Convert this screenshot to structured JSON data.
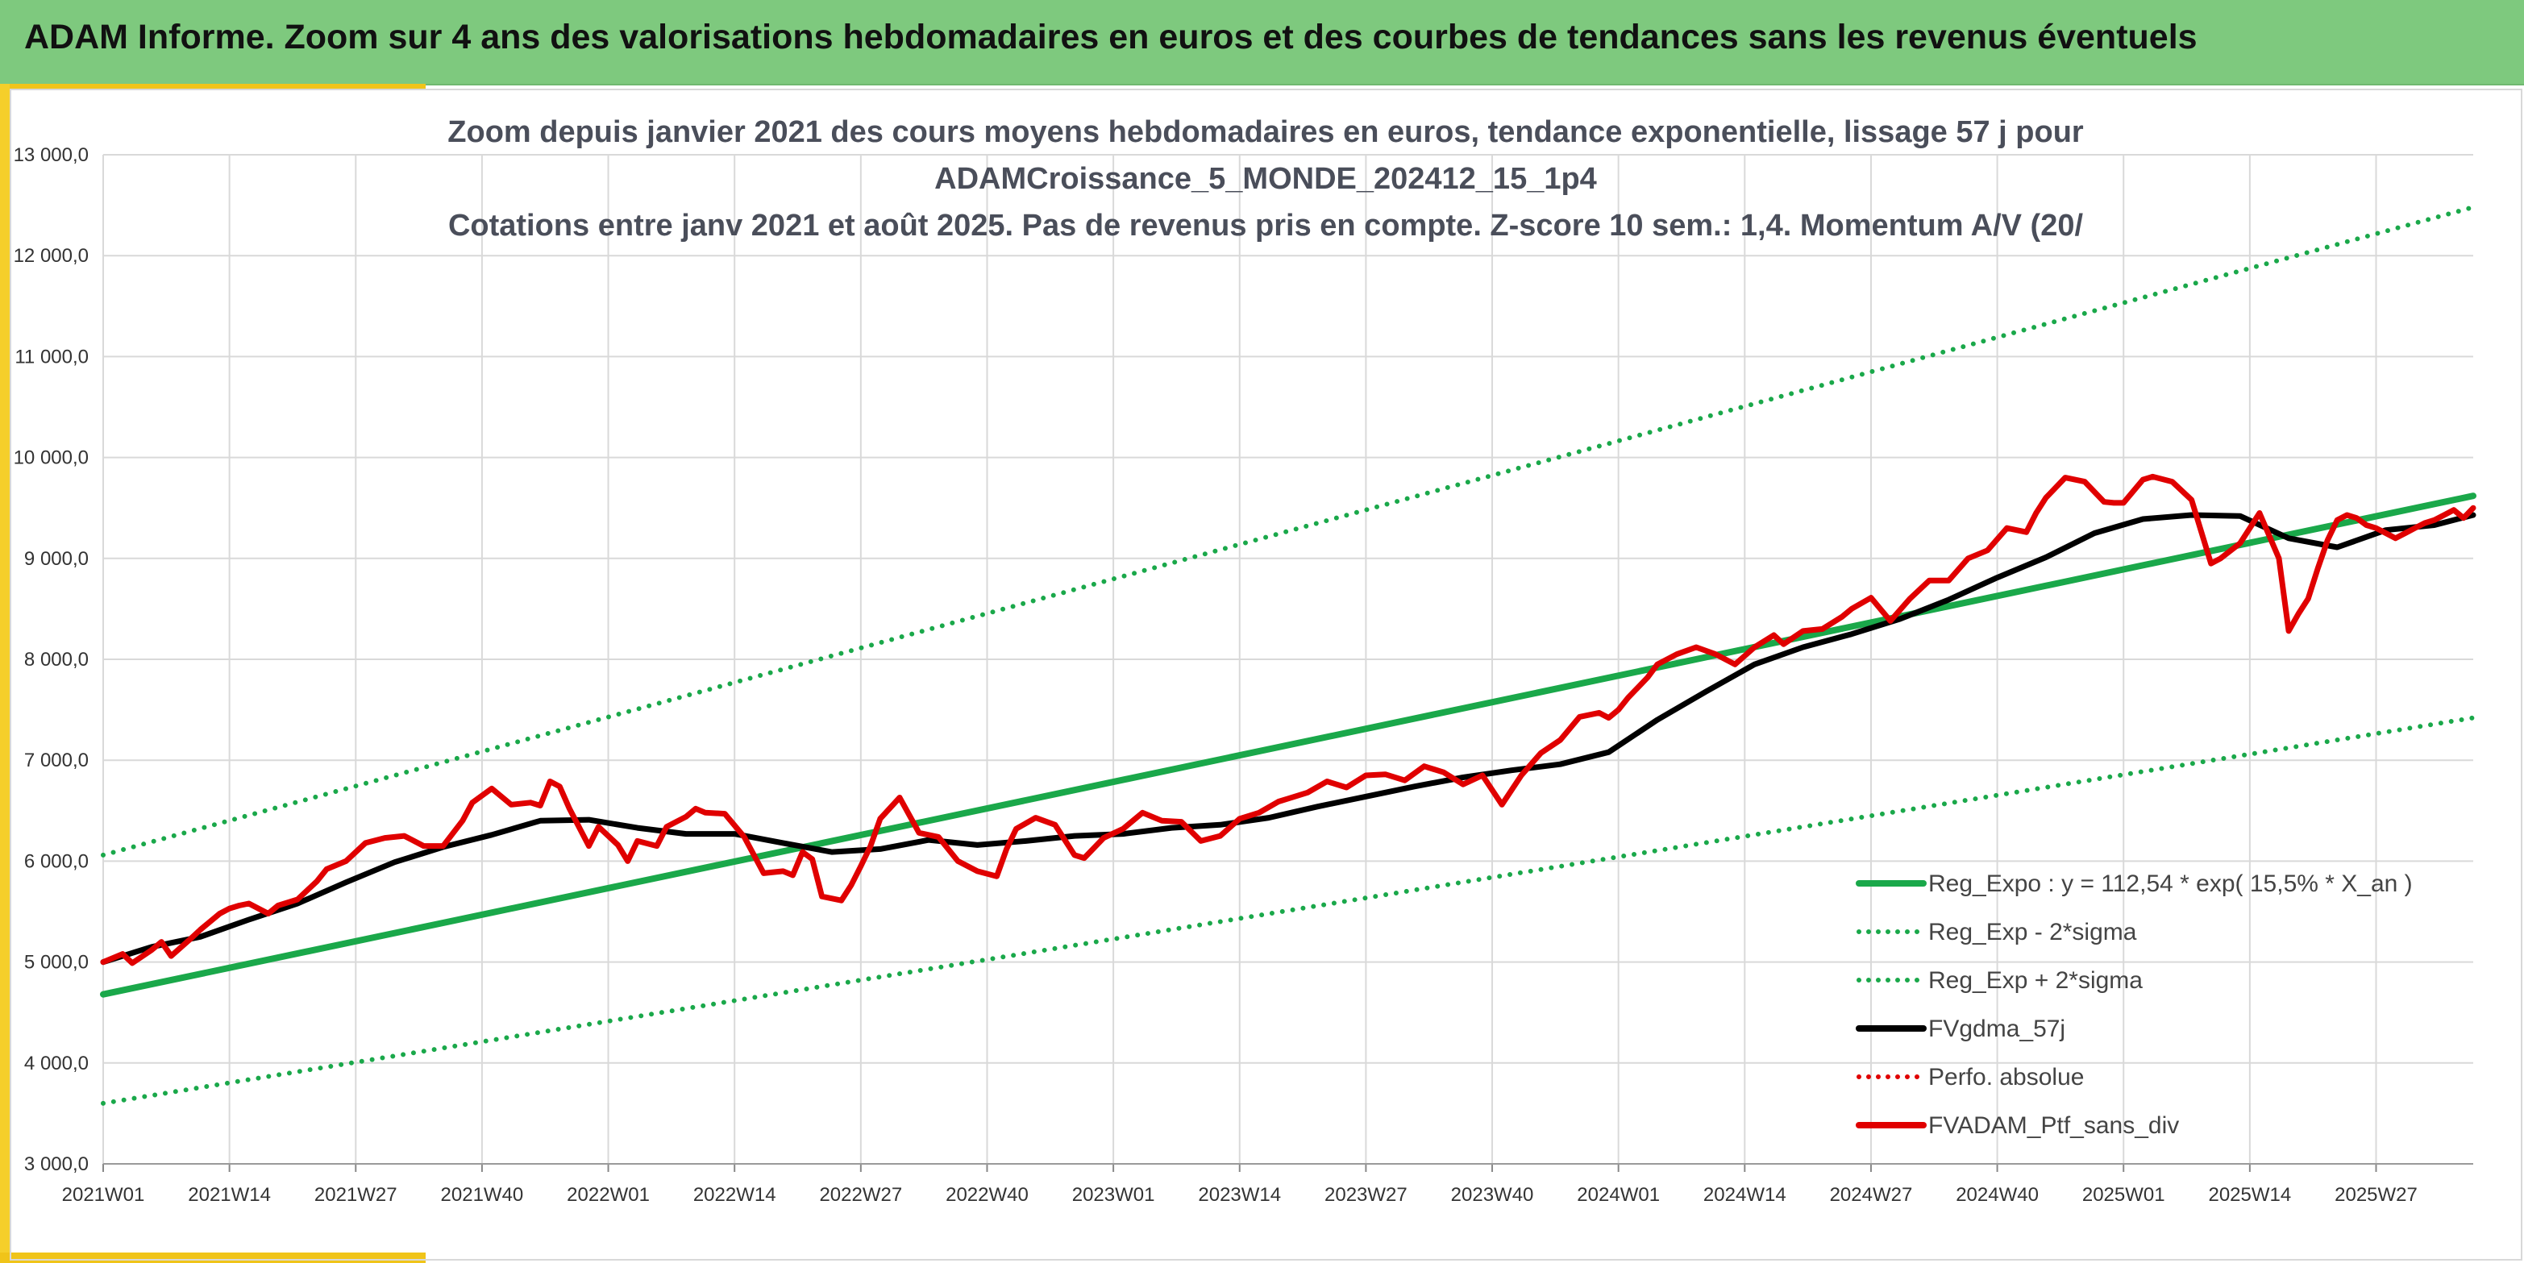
{
  "banner": {
    "title": "ADAM Informe. Zoom sur 4 ans des valorisations hebdomadaires en euros et des courbes de tendances sans les revenus éventuels",
    "color": "#7ec97e"
  },
  "chart_data": {
    "type": "line",
    "title_lines": [
      "Zoom depuis janvier 2021 des cours moyens hebdomadaires en euros, tendance exponentielle, lissage 57 j pour",
      "ADAMCroissance_5_MONDE_202412_15_1p4",
      "Cotations entre janv 2021 et août 2025. Pas de revenus pris en compte. Z-score 10 sem.: 1,4. Momentum A/V (20/"
    ],
    "ylim": [
      3000,
      13000
    ],
    "yticks": [
      "3 000,0",
      "4 000,0",
      "5 000,0",
      "6 000,0",
      "7 000,0",
      "8 000,0",
      "9 000,0",
      "10 000,0",
      "11 000,0",
      "12 000,0",
      "13 000,0"
    ],
    "ytick_values": [
      3000,
      4000,
      5000,
      6000,
      7000,
      8000,
      9000,
      10000,
      11000,
      12000,
      13000
    ],
    "xticks": [
      "2021W01",
      "2021W14",
      "2021W27",
      "2021W40",
      "2022W01",
      "2022W14",
      "2022W27",
      "2022W40",
      "2023W01",
      "2023W14",
      "2023W27",
      "2023W40",
      "2024W01",
      "2024W14",
      "2024W27",
      "2024W40",
      "2025W01",
      "2025W14",
      "2025W27"
    ],
    "week_range": [
      0,
      244
    ],
    "grid": true,
    "legend_position": "bottom-right",
    "series": [
      {
        "name": "Reg_Expo : y = 112,54 * exp( 15,5% *  X_an )",
        "color": "#1aa84a",
        "style": "solid",
        "x": [
          0,
          244
        ],
        "y": [
          4680,
          9620
        ]
      },
      {
        "name": "Reg_Exp - 2*sigma",
        "color": "#1aa84a",
        "style": "dotted",
        "x": [
          0,
          244
        ],
        "y": [
          3600,
          7420
        ]
      },
      {
        "name": "Reg_Exp + 2*sigma",
        "color": "#1aa84a",
        "style": "dotted",
        "x": [
          0,
          244
        ],
        "y": [
          6060,
          12480
        ]
      },
      {
        "name": "FVgdma_57j",
        "color": "#000000",
        "style": "solid",
        "x": [
          0,
          5,
          10,
          15,
          20,
          25,
          30,
          35,
          40,
          45,
          50,
          55,
          60,
          65,
          70,
          75,
          80,
          85,
          90,
          95,
          100,
          105,
          110,
          115,
          120,
          125,
          130,
          135,
          140,
          145,
          150,
          155,
          160,
          165,
          170,
          175,
          180,
          185,
          190,
          195,
          200,
          205,
          210,
          215,
          220,
          225,
          230,
          235,
          240,
          244
        ],
        "y": [
          5000,
          5150,
          5250,
          5420,
          5580,
          5790,
          5990,
          6140,
          6260,
          6400,
          6410,
          6330,
          6270,
          6270,
          6180,
          6090,
          6120,
          6210,
          6160,
          6200,
          6250,
          6270,
          6330,
          6360,
          6430,
          6540,
          6640,
          6740,
          6830,
          6900,
          6960,
          7080,
          7400,
          7680,
          7950,
          8120,
          8250,
          8400,
          8590,
          8810,
          9010,
          9250,
          9390,
          9430,
          9420,
          9200,
          9110,
          9280,
          9330,
          9430
        ]
      },
      {
        "name": "Perfo. absolue",
        "color": "#e00000",
        "style": "dotted",
        "x": [],
        "y": []
      },
      {
        "name": "FVADAM_Ptf_sans_div",
        "color": "#e00000",
        "style": "solid",
        "x": [
          0,
          2,
          3,
          5,
          6,
          7,
          9,
          10,
          12,
          13,
          14,
          15,
          17,
          18,
          20,
          22,
          23,
          25,
          27,
          29,
          31,
          33,
          35,
          37,
          38,
          40,
          42,
          44,
          45,
          46,
          47,
          48,
          50,
          51,
          53,
          54,
          55,
          57,
          58,
          60,
          61,
          62,
          64,
          66,
          68,
          70,
          71,
          72,
          73,
          74,
          76,
          77,
          78,
          79,
          80,
          82,
          84,
          86,
          88,
          90,
          92,
          93,
          94,
          96,
          98,
          100,
          101,
          103,
          105,
          107,
          109,
          111,
          113,
          115,
          117,
          119,
          121,
          122,
          124,
          126,
          128,
          130,
          132,
          134,
          136,
          138,
          140,
          142,
          144,
          146,
          148,
          150,
          152,
          154,
          155,
          156,
          157,
          159,
          160,
          162,
          164,
          166,
          168,
          170,
          172,
          173,
          175,
          177,
          179,
          180,
          182,
          184,
          186,
          188,
          190,
          192,
          194,
          196,
          198,
          199,
          200,
          202,
          204,
          206,
          207,
          208,
          210,
          211,
          213,
          215,
          217,
          218,
          220,
          222,
          224,
          225,
          226,
          227,
          228,
          229,
          230,
          231,
          232,
          233,
          234,
          235,
          236,
          237,
          238,
          239,
          240,
          241,
          242,
          243,
          244
        ],
        "y": [
          5000,
          5080,
          4990,
          5120,
          5200,
          5060,
          5230,
          5320,
          5480,
          5530,
          5560,
          5580,
          5480,
          5560,
          5620,
          5800,
          5920,
          6000,
          6180,
          6230,
          6250,
          6150,
          6150,
          6400,
          6580,
          6720,
          6560,
          6580,
          6550,
          6790,
          6740,
          6520,
          6150,
          6340,
          6160,
          6000,
          6200,
          6150,
          6340,
          6440,
          6520,
          6480,
          6470,
          6240,
          5880,
          5900,
          5860,
          6090,
          6020,
          5650,
          5610,
          5760,
          5950,
          6150,
          6420,
          6630,
          6280,
          6240,
          6000,
          5900,
          5850,
          6120,
          6320,
          6430,
          6360,
          6060,
          6030,
          6230,
          6320,
          6480,
          6400,
          6390,
          6200,
          6250,
          6420,
          6480,
          6590,
          6620,
          6680,
          6790,
          6730,
          6850,
          6860,
          6800,
          6940,
          6880,
          6760,
          6850,
          6560,
          6850,
          7070,
          7200,
          7430,
          7470,
          7420,
          7500,
          7620,
          7820,
          7950,
          8050,
          8120,
          8050,
          7950,
          8120,
          8240,
          8150,
          8280,
          8300,
          8420,
          8500,
          8610,
          8380,
          8600,
          8780,
          8780,
          9000,
          9080,
          9300,
          9260,
          9450,
          9600,
          9800,
          9760,
          9560,
          9550,
          9550,
          9780,
          9810,
          9760,
          9580,
          8950,
          9000,
          9150,
          9450,
          9000,
          8280,
          8450,
          8600,
          8900,
          9180,
          9380,
          9430,
          9400,
          9330,
          9300,
          9250,
          9200,
          9250,
          9300,
          9350,
          9380,
          9430,
          9480,
          9400,
          9500
        ]
      }
    ]
  }
}
